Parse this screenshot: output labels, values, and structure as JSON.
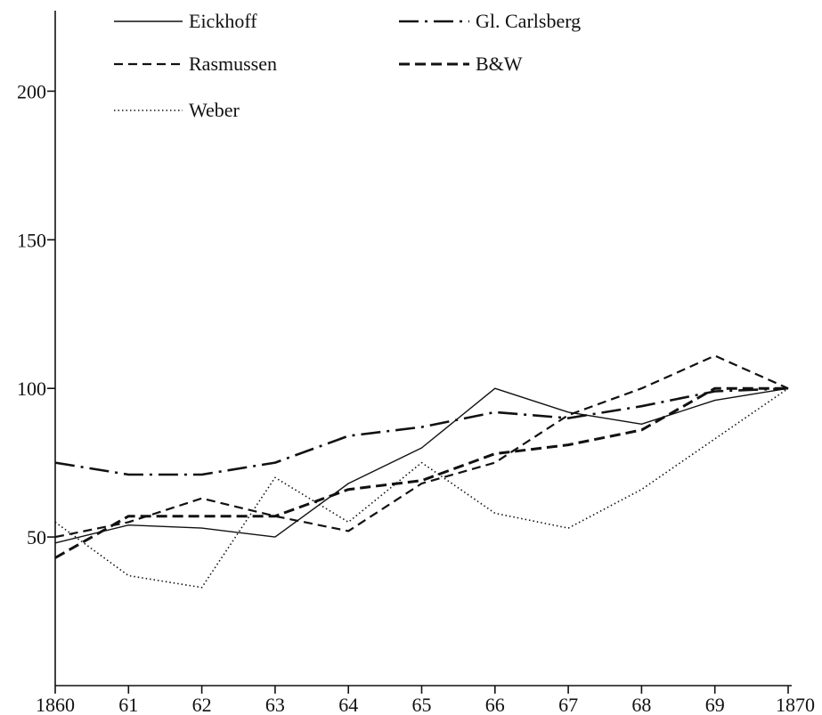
{
  "chart_data": {
    "type": "line",
    "title": "",
    "xlabel": "",
    "ylabel": "",
    "x": [
      "1860",
      "61",
      "62",
      "63",
      "64",
      "65",
      "66",
      "67",
      "68",
      "69",
      "1870"
    ],
    "yticks": [
      "50",
      "100",
      "150",
      "200"
    ],
    "ylim": [
      0,
      225
    ],
    "grid": false,
    "legend_position": "top",
    "series": [
      {
        "name": "Eickhoff",
        "style": "solid",
        "values": [
          48,
          54,
          53,
          50,
          68,
          80,
          100,
          92,
          88,
          96,
          100
        ]
      },
      {
        "name": "Gl. Carlsberg",
        "style": "dash-dot",
        "values": [
          75,
          71,
          71,
          75,
          84,
          87,
          92,
          90,
          94,
          99,
          100
        ]
      },
      {
        "name": "Rasmussen",
        "style": "dashed",
        "values": [
          50,
          55,
          63,
          57,
          52,
          68,
          75,
          91,
          100,
          111,
          100
        ]
      },
      {
        "name": "B&W",
        "style": "dashed-bold",
        "values": [
          43,
          57,
          57,
          57,
          66,
          69,
          78,
          81,
          86,
          100,
          100
        ]
      },
      {
        "name": "Weber",
        "style": "dotted",
        "values": [
          55,
          37,
          33,
          70,
          55,
          75,
          58,
          53,
          66,
          83,
          100
        ]
      }
    ]
  }
}
